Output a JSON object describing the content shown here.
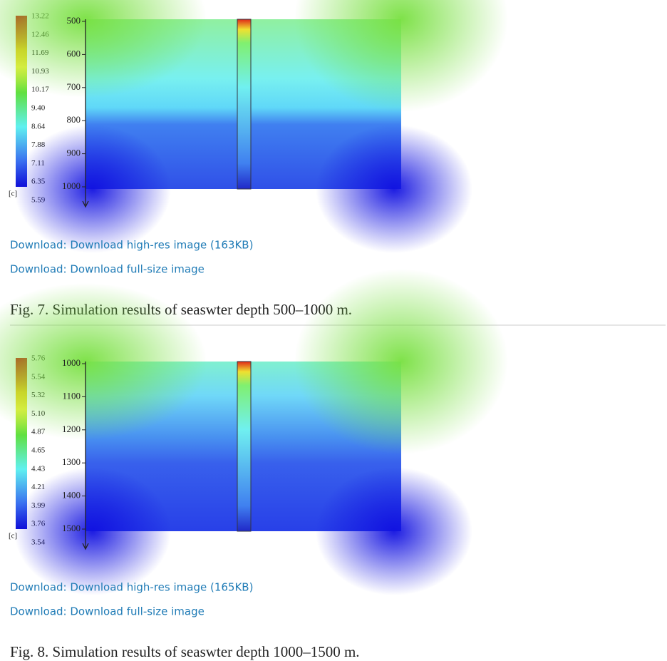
{
  "figures": [
    {
      "colorbar": {
        "labels": [
          "13.22",
          "12.46",
          "11.69",
          "10.93",
          "10.17",
          "9.40",
          "8.64",
          "7.88",
          "7.11",
          "6.35",
          "5.59"
        ],
        "unit": "[c]"
      },
      "depth_ticks": [
        "500",
        "600",
        "700",
        "800",
        "900",
        "1000"
      ],
      "links": [
        "Download: Download high-res image (163KB)",
        "Download: Download full-size image"
      ],
      "caption": "Fig. 7. Simulation results of seaswter depth 500–1000 m."
    },
    {
      "colorbar": {
        "labels": [
          "5.76",
          "5.54",
          "5.32",
          "5.10",
          "4.87",
          "4.65",
          "4.43",
          "4.21",
          "3.99",
          "3.76",
          "3.54"
        ],
        "unit": "[c]"
      },
      "depth_ticks": [
        "1000",
        "1100",
        "1200",
        "1300",
        "1400",
        "1500"
      ],
      "links": [
        "Download: Download high-res image (165KB)",
        "Download: Download full-size image"
      ],
      "caption": "Fig. 8. Simulation results of seaswter depth 1000–1500 m."
    }
  ]
}
